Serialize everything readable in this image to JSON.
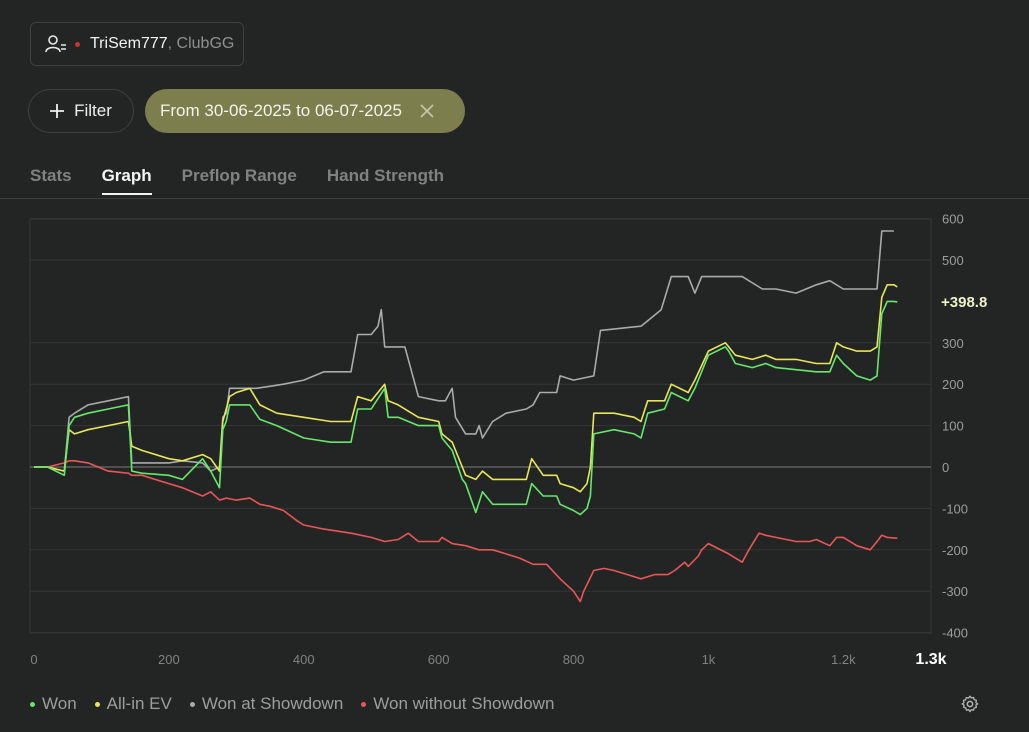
{
  "player": {
    "name": "TriSem777",
    "club": ", ClubGG",
    "status_color": "#c0392b"
  },
  "filter_button": {
    "label": "Filter",
    "icon": "plus-icon"
  },
  "date_filter": {
    "label": "From 30-06-2025 to 06-07-2025",
    "close_icon": "close-icon"
  },
  "tabs": [
    {
      "label": "Stats",
      "active": false
    },
    {
      "label": "Graph",
      "active": true
    },
    {
      "label": "Preflop Range",
      "active": false
    },
    {
      "label": "Hand Strength",
      "active": false
    }
  ],
  "chart_data": {
    "type": "line",
    "xlim": [
      0,
      1330
    ],
    "ylim": [
      -400,
      630
    ],
    "x_ticks": [
      0,
      200,
      400,
      600,
      800,
      1000,
      1200,
      1330
    ],
    "x_tick_labels": [
      "0",
      "200",
      "400",
      "600",
      "800",
      "1k",
      "1.2k",
      "1.3k"
    ],
    "y_ticks": [
      600,
      500,
      300,
      200,
      100,
      0,
      -100,
      -200,
      -300,
      -400
    ],
    "y_tick_labels": [
      "600",
      "500",
      "300",
      "200",
      "100",
      "0",
      "-100",
      "-200",
      "-300",
      "-400"
    ],
    "final_value_label": "+398.8",
    "grid": true,
    "legend_position": "bottom-left",
    "series": [
      {
        "name": "Won",
        "color": "#65e86b",
        "points": [
          [
            0,
            0
          ],
          [
            20,
            0
          ],
          [
            45,
            -20
          ],
          [
            52,
            100
          ],
          [
            60,
            120
          ],
          [
            80,
            130
          ],
          [
            110,
            140
          ],
          [
            140,
            150
          ],
          [
            145,
            -10
          ],
          [
            160,
            -15
          ],
          [
            200,
            -20
          ],
          [
            220,
            -30
          ],
          [
            250,
            20
          ],
          [
            262,
            -10
          ],
          [
            275,
            -50
          ],
          [
            280,
            90
          ],
          [
            285,
            110
          ],
          [
            290,
            150
          ],
          [
            320,
            150
          ],
          [
            335,
            115
          ],
          [
            360,
            100
          ],
          [
            400,
            70
          ],
          [
            440,
            60
          ],
          [
            470,
            60
          ],
          [
            480,
            140
          ],
          [
            500,
            140
          ],
          [
            520,
            190
          ],
          [
            525,
            120
          ],
          [
            540,
            120
          ],
          [
            570,
            100
          ],
          [
            600,
            100
          ],
          [
            605,
            70
          ],
          [
            620,
            40
          ],
          [
            635,
            -30
          ],
          [
            640,
            -40
          ],
          [
            655,
            -110
          ],
          [
            665,
            -60
          ],
          [
            680,
            -90
          ],
          [
            700,
            -90
          ],
          [
            730,
            -90
          ],
          [
            738,
            -40
          ],
          [
            755,
            -70
          ],
          [
            775,
            -70
          ],
          [
            780,
            -90
          ],
          [
            800,
            -105
          ],
          [
            810,
            -115
          ],
          [
            820,
            -100
          ],
          [
            825,
            -70
          ],
          [
            830,
            80
          ],
          [
            860,
            90
          ],
          [
            890,
            80
          ],
          [
            900,
            70
          ],
          [
            910,
            130
          ],
          [
            935,
            140
          ],
          [
            945,
            180
          ],
          [
            970,
            160
          ],
          [
            980,
            190
          ],
          [
            1000,
            270
          ],
          [
            1025,
            290
          ],
          [
            1030,
            280
          ],
          [
            1040,
            250
          ],
          [
            1065,
            240
          ],
          [
            1085,
            250
          ],
          [
            1100,
            240
          ],
          [
            1130,
            235
          ],
          [
            1160,
            230
          ],
          [
            1180,
            230
          ],
          [
            1190,
            270
          ],
          [
            1200,
            250
          ],
          [
            1220,
            220
          ],
          [
            1240,
            210
          ],
          [
            1250,
            220
          ],
          [
            1257,
            370
          ],
          [
            1265,
            400
          ],
          [
            1275,
            400
          ],
          [
            1280,
            398.8
          ]
        ]
      },
      {
        "name": "All-in EV",
        "color": "#e8e65a",
        "points": [
          [
            0,
            0
          ],
          [
            20,
            0
          ],
          [
            45,
            -10
          ],
          [
            52,
            90
          ],
          [
            60,
            80
          ],
          [
            80,
            90
          ],
          [
            110,
            100
          ],
          [
            140,
            110
          ],
          [
            145,
            50
          ],
          [
            160,
            40
          ],
          [
            200,
            20
          ],
          [
            220,
            15
          ],
          [
            250,
            30
          ],
          [
            262,
            20
          ],
          [
            275,
            -10
          ],
          [
            280,
            110
          ],
          [
            285,
            140
          ],
          [
            290,
            170
          ],
          [
            300,
            180
          ],
          [
            320,
            190
          ],
          [
            335,
            150
          ],
          [
            360,
            130
          ],
          [
            400,
            120
          ],
          [
            440,
            110
          ],
          [
            470,
            110
          ],
          [
            480,
            170
          ],
          [
            500,
            160
          ],
          [
            520,
            200
          ],
          [
            525,
            160
          ],
          [
            540,
            150
          ],
          [
            570,
            120
          ],
          [
            600,
            110
          ],
          [
            605,
            80
          ],
          [
            620,
            60
          ],
          [
            635,
            0
          ],
          [
            640,
            -20
          ],
          [
            655,
            -30
          ],
          [
            665,
            -10
          ],
          [
            680,
            -30
          ],
          [
            700,
            -30
          ],
          [
            730,
            -30
          ],
          [
            738,
            20
          ],
          [
            755,
            -20
          ],
          [
            775,
            -20
          ],
          [
            780,
            -40
          ],
          [
            800,
            -50
          ],
          [
            810,
            -60
          ],
          [
            820,
            -40
          ],
          [
            825,
            0
          ],
          [
            830,
            130
          ],
          [
            860,
            130
          ],
          [
            890,
            120
          ],
          [
            900,
            110
          ],
          [
            910,
            160
          ],
          [
            935,
            160
          ],
          [
            945,
            200
          ],
          [
            970,
            180
          ],
          [
            980,
            210
          ],
          [
            1000,
            280
          ],
          [
            1025,
            300
          ],
          [
            1030,
            290
          ],
          [
            1040,
            270
          ],
          [
            1065,
            260
          ],
          [
            1085,
            270
          ],
          [
            1100,
            260
          ],
          [
            1130,
            260
          ],
          [
            1160,
            250
          ],
          [
            1180,
            250
          ],
          [
            1190,
            300
          ],
          [
            1200,
            290
          ],
          [
            1220,
            280
          ],
          [
            1240,
            280
          ],
          [
            1250,
            290
          ],
          [
            1257,
            410
          ],
          [
            1265,
            440
          ],
          [
            1275,
            440
          ],
          [
            1280,
            435
          ]
        ]
      },
      {
        "name": "Won at Showdown",
        "color": "#a9abaa",
        "points": [
          [
            0,
            0
          ],
          [
            20,
            0
          ],
          [
            45,
            -10
          ],
          [
            52,
            120
          ],
          [
            60,
            130
          ],
          [
            80,
            150
          ],
          [
            110,
            160
          ],
          [
            140,
            170
          ],
          [
            145,
            10
          ],
          [
            160,
            10
          ],
          [
            200,
            10
          ],
          [
            220,
            15
          ],
          [
            250,
            10
          ],
          [
            262,
            -10
          ],
          [
            275,
            0
          ],
          [
            280,
            120
          ],
          [
            285,
            130
          ],
          [
            290,
            190
          ],
          [
            330,
            190
          ],
          [
            370,
            200
          ],
          [
            400,
            210
          ],
          [
            430,
            230
          ],
          [
            470,
            230
          ],
          [
            480,
            320
          ],
          [
            500,
            320
          ],
          [
            510,
            340
          ],
          [
            515,
            380
          ],
          [
            520,
            290
          ],
          [
            550,
            290
          ],
          [
            570,
            170
          ],
          [
            600,
            160
          ],
          [
            610,
            160
          ],
          [
            620,
            190
          ],
          [
            625,
            120
          ],
          [
            640,
            80
          ],
          [
            655,
            80
          ],
          [
            660,
            100
          ],
          [
            665,
            70
          ],
          [
            680,
            110
          ],
          [
            700,
            130
          ],
          [
            730,
            140
          ],
          [
            740,
            150
          ],
          [
            750,
            180
          ],
          [
            775,
            180
          ],
          [
            780,
            220
          ],
          [
            800,
            210
          ],
          [
            830,
            220
          ],
          [
            840,
            330
          ],
          [
            900,
            340
          ],
          [
            930,
            380
          ],
          [
            945,
            460
          ],
          [
            970,
            460
          ],
          [
            980,
            420
          ],
          [
            990,
            460
          ],
          [
            1050,
            460
          ],
          [
            1080,
            430
          ],
          [
            1100,
            430
          ],
          [
            1130,
            420
          ],
          [
            1160,
            440
          ],
          [
            1180,
            450
          ],
          [
            1200,
            430
          ],
          [
            1240,
            430
          ],
          [
            1250,
            430
          ],
          [
            1257,
            570
          ],
          [
            1265,
            570
          ],
          [
            1275,
            570
          ]
        ]
      },
      {
        "name": "Won without Showdown",
        "color": "#e85656",
        "points": [
          [
            0,
            0
          ],
          [
            20,
            0
          ],
          [
            45,
            10
          ],
          [
            52,
            15
          ],
          [
            60,
            15
          ],
          [
            80,
            10
          ],
          [
            110,
            -10
          ],
          [
            140,
            -15
          ],
          [
            145,
            -20
          ],
          [
            160,
            -20
          ],
          [
            200,
            -40
          ],
          [
            220,
            -50
          ],
          [
            250,
            -70
          ],
          [
            262,
            -60
          ],
          [
            275,
            -80
          ],
          [
            285,
            -75
          ],
          [
            300,
            -80
          ],
          [
            320,
            -75
          ],
          [
            335,
            -90
          ],
          [
            350,
            -95
          ],
          [
            370,
            -105
          ],
          [
            390,
            -130
          ],
          [
            400,
            -140
          ],
          [
            430,
            -150
          ],
          [
            470,
            -160
          ],
          [
            500,
            -170
          ],
          [
            520,
            -180
          ],
          [
            540,
            -175
          ],
          [
            555,
            -160
          ],
          [
            570,
            -180
          ],
          [
            600,
            -180
          ],
          [
            605,
            -170
          ],
          [
            620,
            -185
          ],
          [
            640,
            -190
          ],
          [
            660,
            -200
          ],
          [
            680,
            -200
          ],
          [
            700,
            -210
          ],
          [
            720,
            -220
          ],
          [
            740,
            -235
          ],
          [
            760,
            -235
          ],
          [
            780,
            -270
          ],
          [
            800,
            -300
          ],
          [
            810,
            -325
          ],
          [
            815,
            -300
          ],
          [
            830,
            -250
          ],
          [
            845,
            -245
          ],
          [
            860,
            -250
          ],
          [
            880,
            -260
          ],
          [
            900,
            -270
          ],
          [
            920,
            -260
          ],
          [
            940,
            -260
          ],
          [
            950,
            -250
          ],
          [
            965,
            -230
          ],
          [
            970,
            -240
          ],
          [
            985,
            -215
          ],
          [
            990,
            -200
          ],
          [
            1000,
            -185
          ],
          [
            1030,
            -210
          ],
          [
            1050,
            -230
          ],
          [
            1060,
            -200
          ],
          [
            1075,
            -160
          ],
          [
            1085,
            -165
          ],
          [
            1100,
            -170
          ],
          [
            1130,
            -180
          ],
          [
            1150,
            -180
          ],
          [
            1160,
            -175
          ],
          [
            1180,
            -190
          ],
          [
            1190,
            -170
          ],
          [
            1200,
            -170
          ],
          [
            1220,
            -190
          ],
          [
            1240,
            -200
          ],
          [
            1250,
            -180
          ],
          [
            1257,
            -165
          ],
          [
            1265,
            -170
          ],
          [
            1280,
            -172
          ]
        ]
      }
    ]
  }
}
